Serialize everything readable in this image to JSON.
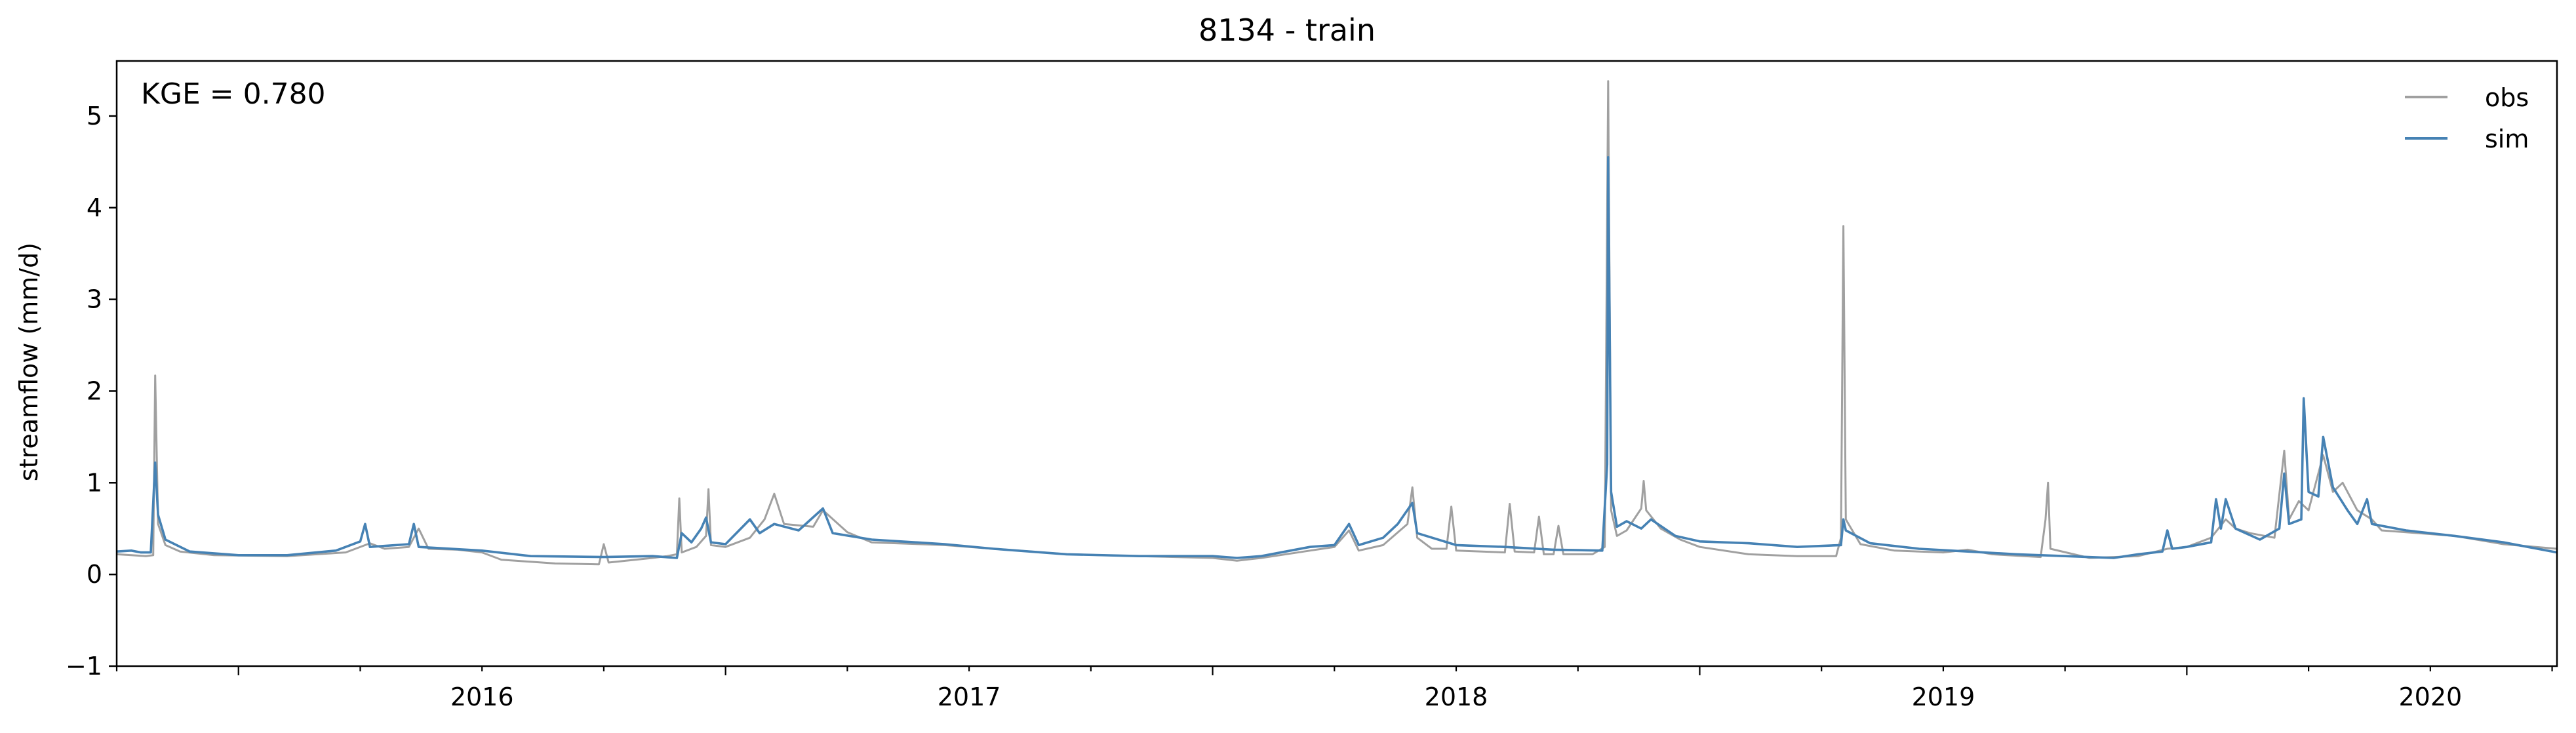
{
  "chart_data": {
    "type": "line",
    "title": "8134 - train",
    "xlabel": "",
    "ylabel": "streamflow (mm/d)",
    "annotation": "KGE = 0.780",
    "xlim": [
      2015.75,
      2020.76
    ],
    "ylim": [
      -1,
      5.6
    ],
    "yticks": [
      -1,
      0,
      1,
      2,
      3,
      4,
      5
    ],
    "xticks": [
      2016,
      2017,
      2018,
      2019,
      2020
    ],
    "legend": {
      "location": "top-right",
      "entries": [
        "obs",
        "sim"
      ]
    },
    "grid": false,
    "series": [
      {
        "name": "obs",
        "color": "#a0a0a0",
        "points": [
          [
            2015.75,
            0.22
          ],
          [
            2015.78,
            0.21
          ],
          [
            2015.81,
            0.2
          ],
          [
            2015.825,
            0.21
          ],
          [
            2015.829,
            2.17
          ],
          [
            2015.835,
            0.55
          ],
          [
            2015.85,
            0.32
          ],
          [
            2015.88,
            0.25
          ],
          [
            2015.95,
            0.21
          ],
          [
            2016.1,
            0.2
          ],
          [
            2016.22,
            0.24
          ],
          [
            2016.27,
            0.34
          ],
          [
            2016.3,
            0.28
          ],
          [
            2016.35,
            0.3
          ],
          [
            2016.37,
            0.5
          ],
          [
            2016.39,
            0.28
          ],
          [
            2016.45,
            0.27
          ],
          [
            2016.5,
            0.24
          ],
          [
            2016.54,
            0.16
          ],
          [
            2016.65,
            0.12
          ],
          [
            2016.74,
            0.11
          ],
          [
            2016.75,
            0.33
          ],
          [
            2016.76,
            0.13
          ],
          [
            2016.85,
            0.18
          ],
          [
            2016.88,
            0.2
          ],
          [
            2016.9,
            0.22
          ],
          [
            2016.905,
            0.83
          ],
          [
            2016.91,
            0.24
          ],
          [
            2016.94,
            0.3
          ],
          [
            2016.96,
            0.42
          ],
          [
            2016.965,
            0.93
          ],
          [
            2016.97,
            0.32
          ],
          [
            2017.0,
            0.3
          ],
          [
            2017.05,
            0.4
          ],
          [
            2017.08,
            0.6
          ],
          [
            2017.1,
            0.88
          ],
          [
            2017.12,
            0.55
          ],
          [
            2017.18,
            0.52
          ],
          [
            2017.2,
            0.7
          ],
          [
            2017.25,
            0.46
          ],
          [
            2017.3,
            0.35
          ],
          [
            2017.45,
            0.32
          ],
          [
            2017.55,
            0.28
          ],
          [
            2017.7,
            0.22
          ],
          [
            2017.85,
            0.2
          ],
          [
            2018.0,
            0.18
          ],
          [
            2018.05,
            0.15
          ],
          [
            2018.1,
            0.18
          ],
          [
            2018.2,
            0.26
          ],
          [
            2018.25,
            0.3
          ],
          [
            2018.28,
            0.48
          ],
          [
            2018.3,
            0.26
          ],
          [
            2018.35,
            0.32
          ],
          [
            2018.4,
            0.55
          ],
          [
            2018.41,
            0.95
          ],
          [
            2018.42,
            0.4
          ],
          [
            2018.45,
            0.28
          ],
          [
            2018.48,
            0.28
          ],
          [
            2018.49,
            0.74
          ],
          [
            2018.5,
            0.26
          ],
          [
            2018.6,
            0.24
          ],
          [
            2018.61,
            0.77
          ],
          [
            2018.62,
            0.25
          ],
          [
            2018.66,
            0.24
          ],
          [
            2018.67,
            0.63
          ],
          [
            2018.68,
            0.22
          ],
          [
            2018.7,
            0.22
          ],
          [
            2018.71,
            0.53
          ],
          [
            2018.72,
            0.22
          ],
          [
            2018.78,
            0.22
          ],
          [
            2018.805,
            0.3
          ],
          [
            2018.812,
            5.38
          ],
          [
            2018.818,
            0.7
          ],
          [
            2018.83,
            0.42
          ],
          [
            2018.85,
            0.48
          ],
          [
            2018.88,
            0.72
          ],
          [
            2018.885,
            1.02
          ],
          [
            2018.89,
            0.7
          ],
          [
            2018.92,
            0.5
          ],
          [
            2018.96,
            0.38
          ],
          [
            2019.0,
            0.3
          ],
          [
            2019.1,
            0.22
          ],
          [
            2019.2,
            0.2
          ],
          [
            2019.28,
            0.2
          ],
          [
            2019.29,
            0.4
          ],
          [
            2019.295,
            3.8
          ],
          [
            2019.3,
            0.6
          ],
          [
            2019.33,
            0.33
          ],
          [
            2019.4,
            0.26
          ],
          [
            2019.5,
            0.24
          ],
          [
            2019.55,
            0.27
          ],
          [
            2019.6,
            0.22
          ],
          [
            2019.7,
            0.19
          ],
          [
            2019.71,
            0.6
          ],
          [
            2019.715,
            1.0
          ],
          [
            2019.72,
            0.28
          ],
          [
            2019.8,
            0.18
          ],
          [
            2019.9,
            0.2
          ],
          [
            2019.96,
            0.28
          ],
          [
            2020.0,
            0.3
          ],
          [
            2020.05,
            0.4
          ],
          [
            2020.08,
            0.6
          ],
          [
            2020.1,
            0.5
          ],
          [
            2020.13,
            0.45
          ],
          [
            2020.18,
            0.4
          ],
          [
            2020.2,
            1.35
          ],
          [
            2020.21,
            0.6
          ],
          [
            2020.23,
            0.8
          ],
          [
            2020.25,
            0.7
          ],
          [
            2020.28,
            1.3
          ],
          [
            2020.3,
            0.9
          ],
          [
            2020.32,
            1.0
          ],
          [
            2020.35,
            0.7
          ],
          [
            2020.38,
            0.6
          ],
          [
            2020.4,
            0.48
          ],
          [
            2020.45,
            0.46
          ],
          [
            2020.55,
            0.42
          ],
          [
            2020.65,
            0.33
          ],
          [
            2020.76,
            0.28
          ]
        ]
      },
      {
        "name": "sim",
        "color": "#4682b4",
        "points": [
          [
            2015.75,
            0.25
          ],
          [
            2015.78,
            0.26
          ],
          [
            2015.8,
            0.24
          ],
          [
            2015.82,
            0.24
          ],
          [
            2015.829,
            1.22
          ],
          [
            2015.835,
            0.65
          ],
          [
            2015.85,
            0.38
          ],
          [
            2015.9,
            0.25
          ],
          [
            2016.0,
            0.21
          ],
          [
            2016.1,
            0.21
          ],
          [
            2016.2,
            0.26
          ],
          [
            2016.25,
            0.36
          ],
          [
            2016.26,
            0.55
          ],
          [
            2016.27,
            0.3
          ],
          [
            2016.35,
            0.33
          ],
          [
            2016.36,
            0.55
          ],
          [
            2016.37,
            0.3
          ],
          [
            2016.5,
            0.26
          ],
          [
            2016.6,
            0.2
          ],
          [
            2016.75,
            0.19
          ],
          [
            2016.85,
            0.2
          ],
          [
            2016.9,
            0.18
          ],
          [
            2016.91,
            0.45
          ],
          [
            2016.93,
            0.35
          ],
          [
            2016.95,
            0.5
          ],
          [
            2016.96,
            0.62
          ],
          [
            2016.97,
            0.35
          ],
          [
            2017.0,
            0.33
          ],
          [
            2017.05,
            0.6
          ],
          [
            2017.07,
            0.45
          ],
          [
            2017.1,
            0.55
          ],
          [
            2017.15,
            0.48
          ],
          [
            2017.2,
            0.72
          ],
          [
            2017.22,
            0.45
          ],
          [
            2017.3,
            0.38
          ],
          [
            2017.45,
            0.33
          ],
          [
            2017.55,
            0.28
          ],
          [
            2017.7,
            0.22
          ],
          [
            2017.85,
            0.2
          ],
          [
            2018.0,
            0.2
          ],
          [
            2018.05,
            0.18
          ],
          [
            2018.1,
            0.2
          ],
          [
            2018.2,
            0.3
          ],
          [
            2018.25,
            0.32
          ],
          [
            2018.28,
            0.55
          ],
          [
            2018.3,
            0.32
          ],
          [
            2018.35,
            0.4
          ],
          [
            2018.38,
            0.55
          ],
          [
            2018.41,
            0.78
          ],
          [
            2018.42,
            0.45
          ],
          [
            2018.5,
            0.32
          ],
          [
            2018.6,
            0.3
          ],
          [
            2018.7,
            0.27
          ],
          [
            2018.8,
            0.26
          ],
          [
            2018.81,
            1.2
          ],
          [
            2018.812,
            4.55
          ],
          [
            2018.818,
            0.9
          ],
          [
            2018.83,
            0.52
          ],
          [
            2018.85,
            0.58
          ],
          [
            2018.88,
            0.5
          ],
          [
            2018.9,
            0.6
          ],
          [
            2018.95,
            0.42
          ],
          [
            2019.0,
            0.36
          ],
          [
            2019.1,
            0.34
          ],
          [
            2019.2,
            0.3
          ],
          [
            2019.29,
            0.32
          ],
          [
            2019.295,
            0.6
          ],
          [
            2019.3,
            0.48
          ],
          [
            2019.35,
            0.34
          ],
          [
            2019.45,
            0.28
          ],
          [
            2019.55,
            0.25
          ],
          [
            2019.65,
            0.22
          ],
          [
            2019.75,
            0.2
          ],
          [
            2019.85,
            0.18
          ],
          [
            2019.9,
            0.22
          ],
          [
            2019.95,
            0.25
          ],
          [
            2019.96,
            0.48
          ],
          [
            2019.97,
            0.28
          ],
          [
            2020.0,
            0.3
          ],
          [
            2020.05,
            0.35
          ],
          [
            2020.06,
            0.82
          ],
          [
            2020.07,
            0.5
          ],
          [
            2020.08,
            0.82
          ],
          [
            2020.1,
            0.5
          ],
          [
            2020.15,
            0.38
          ],
          [
            2020.19,
            0.5
          ],
          [
            2020.2,
            1.1
          ],
          [
            2020.21,
            0.55
          ],
          [
            2020.235,
            0.6
          ],
          [
            2020.24,
            1.92
          ],
          [
            2020.25,
            0.9
          ],
          [
            2020.27,
            0.85
          ],
          [
            2020.28,
            1.5
          ],
          [
            2020.3,
            0.95
          ],
          [
            2020.33,
            0.7
          ],
          [
            2020.35,
            0.55
          ],
          [
            2020.37,
            0.82
          ],
          [
            2020.38,
            0.55
          ],
          [
            2020.45,
            0.48
          ],
          [
            2020.55,
            0.42
          ],
          [
            2020.65,
            0.35
          ],
          [
            2020.76,
            0.24
          ]
        ]
      }
    ]
  }
}
